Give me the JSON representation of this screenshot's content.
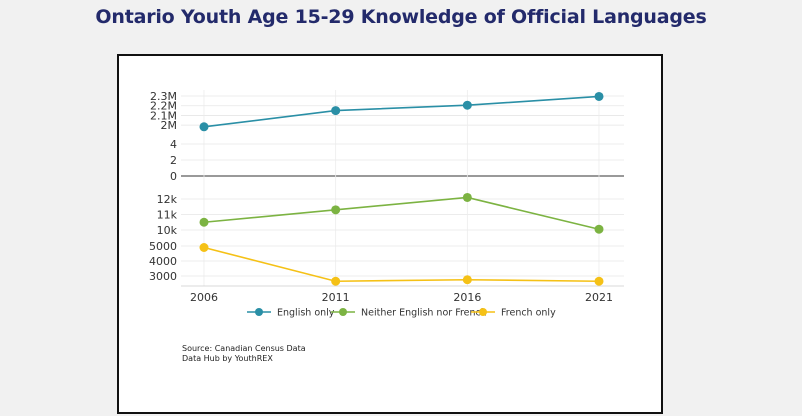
{
  "title": "Ontario Youth Age 15-29 Knowledge of Official Languages",
  "source_lines": [
    "Source: Canadian Census Data",
    "Data Hub by YouthREX"
  ],
  "colors": {
    "english": "#2a8fa6",
    "neither": "#7cb342",
    "french": "#f5c116",
    "title": "#232a6b"
  },
  "chart_data": {
    "type": "line",
    "title": "Ontario Youth Age 15-29 Knowledge of Official Languages",
    "x": [
      2006,
      2011,
      2016,
      2021
    ],
    "x_tick_labels": [
      "2006",
      "2011",
      "2016",
      "2021"
    ],
    "series": [
      {
        "name": "English only",
        "values": [
          1983000,
          2150000,
          2205000,
          2295000
        ]
      },
      {
        "name": "Neither English nor French",
        "values": [
          10500,
          11300,
          12100,
          10050
        ]
      },
      {
        "name": "French only",
        "values": [
          4900,
          2650,
          2750,
          2650
        ]
      }
    ],
    "y_tick_labels": [
      "2.3M",
      "2.2M",
      "2.1M",
      "2M",
      "4",
      "2",
      "0",
      "12k",
      "11k",
      "10k",
      "5000",
      "4000",
      "3000"
    ],
    "y_scale": "broken axis with separate bands for each series",
    "grid": true,
    "legend": "bottom",
    "xlabel": "",
    "ylabel": ""
  }
}
